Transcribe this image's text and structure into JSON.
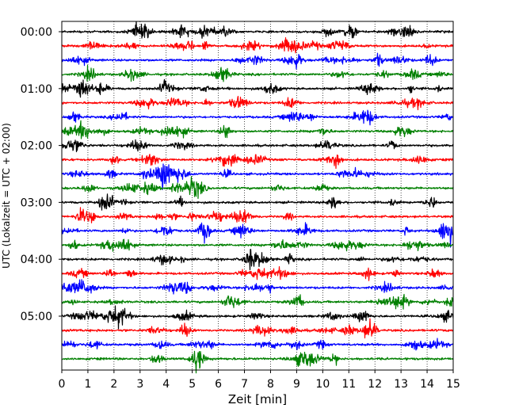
{
  "chart_data": {
    "type": "line",
    "title": "",
    "xlabel": "Zeit  [min]",
    "ylabel": "UTC (Lokalzeit = UTC + 02:00)",
    "xlim": [
      0,
      15
    ],
    "x_ticks": [
      "0",
      "1",
      "2",
      "3",
      "4",
      "5",
      "6",
      "7",
      "8",
      "9",
      "10",
      "11",
      "12",
      "13",
      "14",
      "15"
    ],
    "y_ticks": [
      "00:00",
      "01:00",
      "02:00",
      "03:00",
      "04:00",
      "05:00"
    ],
    "grid": "vertical dotted at each minute",
    "trace_interval_min": 15,
    "trace_colors": [
      "#000000",
      "#ff0000",
      "#0000ff",
      "#008000"
    ],
    "trace_count": 24
  }
}
